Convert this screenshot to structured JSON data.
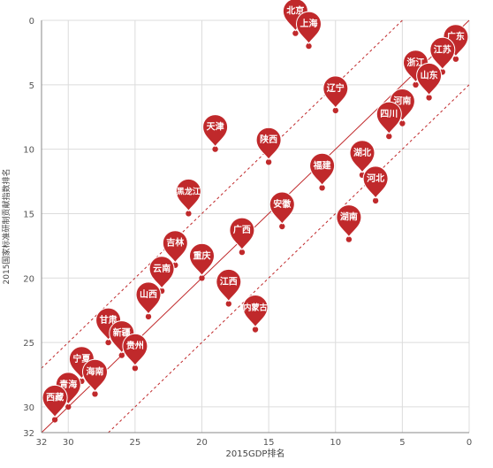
{
  "chart_data": {
    "type": "scatter",
    "xlabel": "2015GDP排名",
    "ylabel": "2015国家标准研制贡献指数排名",
    "xlim": [
      32,
      0
    ],
    "ylim": [
      0,
      32
    ],
    "x_ticks": [
      32,
      30,
      25,
      20,
      15,
      10,
      5,
      0
    ],
    "y_ticks": [
      0,
      5,
      10,
      15,
      20,
      25,
      30,
      32
    ],
    "grid": true,
    "reference_lines": [
      {
        "style": "solid",
        "offset": 0
      },
      {
        "style": "dashed",
        "offset": 5
      },
      {
        "style": "dashed",
        "offset": -5
      }
    ],
    "colors": {
      "pin": "#c0292b",
      "line": "#c0292b",
      "grid": "#dcdcdc",
      "axis": "#888888"
    },
    "points": [
      {
        "name": "北京",
        "x": 13,
        "y": 1
      },
      {
        "name": "上海",
        "x": 12,
        "y": 2
      },
      {
        "name": "广东",
        "x": 1,
        "y": 3
      },
      {
        "name": "江苏",
        "x": 2,
        "y": 4
      },
      {
        "name": "浙江",
        "x": 4,
        "y": 5
      },
      {
        "name": "山东",
        "x": 3,
        "y": 6
      },
      {
        "name": "辽宁",
        "x": 10,
        "y": 7
      },
      {
        "name": "河南",
        "x": 5,
        "y": 8
      },
      {
        "name": "四川",
        "x": 6,
        "y": 9
      },
      {
        "name": "天津",
        "x": 19,
        "y": 10
      },
      {
        "name": "陕西",
        "x": 15,
        "y": 11
      },
      {
        "name": "湖北",
        "x": 8,
        "y": 12
      },
      {
        "name": "福建",
        "x": 11,
        "y": 13
      },
      {
        "name": "河北",
        "x": 7,
        "y": 14
      },
      {
        "name": "黑龙江",
        "x": 21,
        "y": 15
      },
      {
        "name": "安徽",
        "x": 14,
        "y": 16
      },
      {
        "name": "湖南",
        "x": 9,
        "y": 17
      },
      {
        "name": "广西",
        "x": 17,
        "y": 18
      },
      {
        "name": "吉林",
        "x": 22,
        "y": 19
      },
      {
        "name": "重庆",
        "x": 20,
        "y": 20
      },
      {
        "name": "云南",
        "x": 23,
        "y": 21
      },
      {
        "name": "江西",
        "x": 18,
        "y": 22
      },
      {
        "name": "山西",
        "x": 24,
        "y": 23
      },
      {
        "name": "内蒙古",
        "x": 16,
        "y": 24
      },
      {
        "name": "甘肃",
        "x": 27,
        "y": 25
      },
      {
        "name": "新疆",
        "x": 26,
        "y": 26
      },
      {
        "name": "贵州",
        "x": 25,
        "y": 27
      },
      {
        "name": "宁夏",
        "x": 29,
        "y": 28
      },
      {
        "name": "海南",
        "x": 28,
        "y": 29
      },
      {
        "name": "青海",
        "x": 30,
        "y": 30
      },
      {
        "name": "西藏",
        "x": 31,
        "y": 31
      }
    ]
  }
}
